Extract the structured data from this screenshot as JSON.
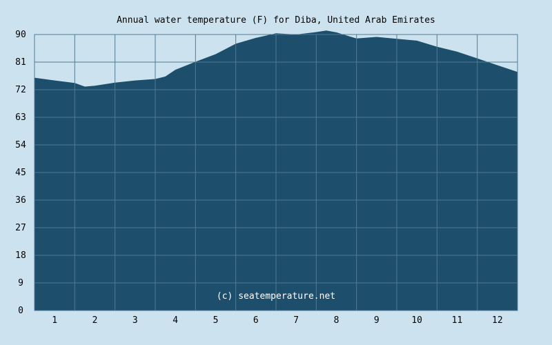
{
  "colors": {
    "background": "#cce3ef",
    "area_fill": "#1d4e6b",
    "grid": "#4f7a94"
  },
  "chart_data": {
    "type": "area",
    "title": "Annual water temperature (F) for Diba, United Arab Emirates",
    "xlabel": "",
    "ylabel": "",
    "credit": "(c) seatemperature.net",
    "xlim": [
      0.5,
      12.5
    ],
    "ylim": [
      0,
      90
    ],
    "grid": true,
    "x_ticks": [
      1,
      2,
      3,
      4,
      5,
      6,
      7,
      8,
      9,
      10,
      11,
      12
    ],
    "y_ticks": [
      0,
      9,
      18,
      27,
      36,
      45,
      54,
      63,
      72,
      81,
      90
    ],
    "series": [
      {
        "x": [
          0.5,
          1.0,
          1.5,
          1.75,
          2.0,
          2.5,
          3.0,
          3.5,
          3.75,
          4.0,
          4.5,
          5.0,
          5.5,
          6.0,
          6.5,
          7.0,
          7.5,
          7.75,
          8.0,
          8.5,
          9.0,
          9.5,
          10.0,
          10.5,
          11.0,
          11.5,
          12.0,
          12.5
        ],
        "values": [
          75.9,
          75.0,
          74.2,
          73.0,
          73.3,
          74.3,
          75.0,
          75.5,
          76.3,
          78.5,
          81.1,
          83.6,
          87.0,
          88.9,
          90.4,
          90.0,
          90.8,
          91.3,
          90.7,
          88.7,
          89.2,
          88.6,
          88.0,
          86.0,
          84.4,
          82.2,
          80.0,
          77.8
        ]
      }
    ]
  }
}
